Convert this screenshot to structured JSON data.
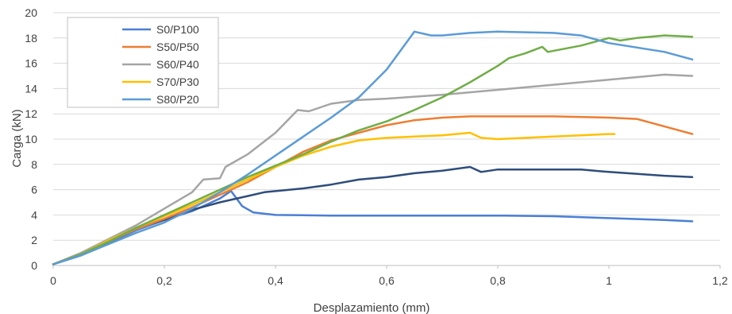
{
  "chart_data": {
    "type": "line",
    "xlabel": "Desplazamiento (mm)",
    "ylabel": "Carga (kN)",
    "xlim": [
      0,
      1.2
    ],
    "ylim": [
      0,
      20
    ],
    "xticks": [
      0,
      0.2,
      0.4,
      0.6,
      0.8,
      1,
      1.2
    ],
    "xtick_labels": [
      "0",
      "0,2",
      "0,4",
      "0,6",
      "0,8",
      "1",
      "1,2"
    ],
    "yticks": [
      0,
      2,
      4,
      6,
      8,
      10,
      12,
      14,
      16,
      18,
      20
    ],
    "ytick_labels": [
      "0",
      "2",
      "4",
      "6",
      "8",
      "10",
      "12",
      "14",
      "16",
      "18",
      "20"
    ],
    "grid": "horizontal",
    "legend": {
      "placement": "top-left",
      "entries": [
        "S0/P100",
        "S50/P50",
        "S60/P40",
        "S70/P30",
        "S80/P20"
      ]
    },
    "series": [
      {
        "name": "S0/P100",
        "color": "#4a7fd4",
        "points": [
          [
            0,
            0.1
          ],
          [
            0.05,
            0.8
          ],
          [
            0.1,
            1.8
          ],
          [
            0.15,
            2.8
          ],
          [
            0.2,
            3.6
          ],
          [
            0.25,
            4.3
          ],
          [
            0.3,
            5.3
          ],
          [
            0.32,
            5.9
          ],
          [
            0.34,
            4.7
          ],
          [
            0.36,
            4.2
          ],
          [
            0.4,
            4.0
          ],
          [
            0.5,
            3.95
          ],
          [
            0.6,
            3.95
          ],
          [
            0.7,
            3.95
          ],
          [
            0.8,
            3.95
          ],
          [
            0.9,
            3.9
          ],
          [
            1.0,
            3.75
          ],
          [
            1.1,
            3.6
          ],
          [
            1.15,
            3.5
          ]
        ]
      },
      {
        "name": "",
        "color": "#2e4d7b",
        "points": [
          [
            0,
            0.1
          ],
          [
            0.05,
            0.9
          ],
          [
            0.1,
            1.9
          ],
          [
            0.15,
            3.0
          ],
          [
            0.2,
            3.6
          ],
          [
            0.25,
            4.4
          ],
          [
            0.3,
            5.0
          ],
          [
            0.35,
            5.5
          ],
          [
            0.38,
            5.8
          ],
          [
            0.45,
            6.1
          ],
          [
            0.5,
            6.4
          ],
          [
            0.55,
            6.8
          ],
          [
            0.6,
            7.0
          ],
          [
            0.65,
            7.3
          ],
          [
            0.7,
            7.5
          ],
          [
            0.75,
            7.8
          ],
          [
            0.77,
            7.4
          ],
          [
            0.8,
            7.6
          ],
          [
            0.9,
            7.6
          ],
          [
            0.95,
            7.6
          ],
          [
            1.0,
            7.4
          ],
          [
            1.1,
            7.1
          ],
          [
            1.15,
            7.0
          ]
        ]
      },
      {
        "name": "S50/P50",
        "color": "#ed7d31",
        "points": [
          [
            0,
            0.1
          ],
          [
            0.05,
            0.9
          ],
          [
            0.1,
            1.9
          ],
          [
            0.15,
            2.9
          ],
          [
            0.2,
            3.7
          ],
          [
            0.25,
            4.6
          ],
          [
            0.3,
            5.6
          ],
          [
            0.35,
            6.6
          ],
          [
            0.4,
            7.8
          ],
          [
            0.45,
            9.0
          ],
          [
            0.5,
            9.9
          ],
          [
            0.55,
            10.5
          ],
          [
            0.6,
            11.1
          ],
          [
            0.65,
            11.5
          ],
          [
            0.7,
            11.7
          ],
          [
            0.75,
            11.8
          ],
          [
            0.8,
            11.8
          ],
          [
            0.9,
            11.8
          ],
          [
            1.0,
            11.7
          ],
          [
            1.05,
            11.6
          ],
          [
            1.1,
            11.0
          ],
          [
            1.15,
            10.4
          ]
        ]
      },
      {
        "name": "S60/P40",
        "color": "#a5a5a5",
        "points": [
          [
            0,
            0.1
          ],
          [
            0.05,
            1.0
          ],
          [
            0.1,
            2.1
          ],
          [
            0.15,
            3.2
          ],
          [
            0.2,
            4.5
          ],
          [
            0.25,
            5.8
          ],
          [
            0.27,
            6.8
          ],
          [
            0.3,
            6.9
          ],
          [
            0.31,
            7.8
          ],
          [
            0.35,
            8.8
          ],
          [
            0.4,
            10.5
          ],
          [
            0.44,
            12.3
          ],
          [
            0.46,
            12.2
          ],
          [
            0.5,
            12.8
          ],
          [
            0.55,
            13.1
          ],
          [
            0.6,
            13.2
          ],
          [
            0.7,
            13.5
          ],
          [
            0.8,
            13.9
          ],
          [
            0.9,
            14.3
          ],
          [
            1.0,
            14.7
          ],
          [
            1.1,
            15.1
          ],
          [
            1.15,
            15.0
          ]
        ]
      },
      {
        "name": "S70/P30",
        "color": "#ffc000",
        "points": [
          [
            0,
            0.1
          ],
          [
            0.05,
            0.9
          ],
          [
            0.1,
            2.0
          ],
          [
            0.15,
            3.0
          ],
          [
            0.2,
            3.9
          ],
          [
            0.25,
            4.8
          ],
          [
            0.3,
            5.8
          ],
          [
            0.35,
            6.8
          ],
          [
            0.4,
            7.8
          ],
          [
            0.45,
            8.7
          ],
          [
            0.5,
            9.4
          ],
          [
            0.55,
            9.9
          ],
          [
            0.6,
            10.1
          ],
          [
            0.65,
            10.2
          ],
          [
            0.7,
            10.3
          ],
          [
            0.75,
            10.5
          ],
          [
            0.77,
            10.1
          ],
          [
            0.8,
            10.0
          ],
          [
            0.85,
            10.1
          ],
          [
            0.9,
            10.2
          ],
          [
            0.95,
            10.3
          ],
          [
            1.0,
            10.4
          ],
          [
            1.01,
            10.4
          ]
        ]
      },
      {
        "name": "",
        "color": "#70ad47",
        "points": [
          [
            0,
            0.1
          ],
          [
            0.05,
            0.9
          ],
          [
            0.1,
            1.9
          ],
          [
            0.15,
            3.0
          ],
          [
            0.2,
            4.0
          ],
          [
            0.25,
            5.0
          ],
          [
            0.3,
            6.0
          ],
          [
            0.35,
            7.0
          ],
          [
            0.4,
            7.9
          ],
          [
            0.45,
            8.8
          ],
          [
            0.5,
            9.8
          ],
          [
            0.55,
            10.7
          ],
          [
            0.6,
            11.4
          ],
          [
            0.65,
            12.3
          ],
          [
            0.7,
            13.3
          ],
          [
            0.75,
            14.5
          ],
          [
            0.8,
            15.8
          ],
          [
            0.82,
            16.4
          ],
          [
            0.85,
            16.8
          ],
          [
            0.88,
            17.3
          ],
          [
            0.89,
            16.9
          ],
          [
            0.95,
            17.4
          ],
          [
            1.0,
            18.0
          ],
          [
            1.02,
            17.8
          ],
          [
            1.05,
            18.0
          ],
          [
            1.1,
            18.2
          ],
          [
            1.15,
            18.1
          ]
        ]
      },
      {
        "name": "S80/P20",
        "color": "#5b9bd5",
        "points": [
          [
            0,
            0.1
          ],
          [
            0.05,
            0.8
          ],
          [
            0.1,
            1.7
          ],
          [
            0.15,
            2.6
          ],
          [
            0.2,
            3.4
          ],
          [
            0.25,
            4.5
          ],
          [
            0.3,
            5.8
          ],
          [
            0.35,
            7.2
          ],
          [
            0.4,
            8.7
          ],
          [
            0.45,
            10.2
          ],
          [
            0.5,
            11.7
          ],
          [
            0.55,
            13.3
          ],
          [
            0.6,
            15.5
          ],
          [
            0.63,
            17.3
          ],
          [
            0.65,
            18.5
          ],
          [
            0.68,
            18.2
          ],
          [
            0.7,
            18.2
          ],
          [
            0.75,
            18.4
          ],
          [
            0.8,
            18.5
          ],
          [
            0.9,
            18.4
          ],
          [
            0.95,
            18.2
          ],
          [
            1.0,
            17.6
          ],
          [
            1.1,
            16.9
          ],
          [
            1.15,
            16.3
          ]
        ]
      }
    ]
  }
}
